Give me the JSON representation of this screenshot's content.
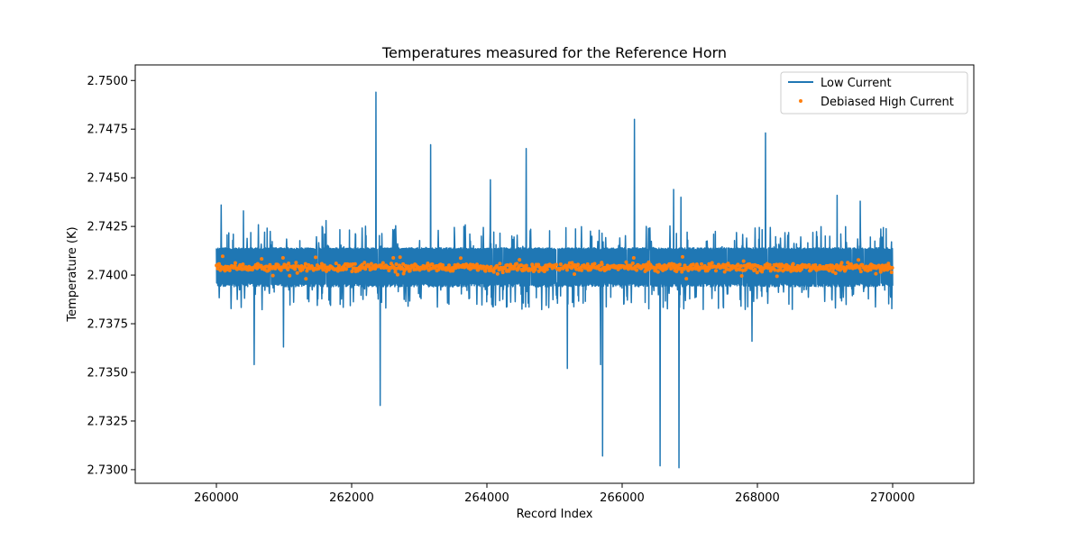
{
  "chart_data": {
    "type": "line",
    "title": "Temperatures measured for the Reference Horn",
    "xlabel": "Record Index",
    "ylabel": "Temperature (K)",
    "xlim": [
      258800,
      271200
    ],
    "ylim": [
      2.7293,
      2.7508
    ],
    "x_ticks": [
      260000,
      262000,
      264000,
      266000,
      268000,
      270000
    ],
    "x_tick_labels": [
      "260000",
      "262000",
      "264000",
      "266000",
      "268000",
      "270000"
    ],
    "y_ticks": [
      2.73,
      2.7325,
      2.735,
      2.7375,
      2.74,
      2.7425,
      2.745,
      2.7475,
      2.75
    ],
    "y_tick_labels": [
      "2.7300",
      "2.7325",
      "2.7350",
      "2.7375",
      "2.7400",
      "2.7425",
      "2.7450",
      "2.7475",
      "2.7500"
    ],
    "legend_position": "upper-right",
    "series": [
      {
        "name": "Low Current",
        "kind": "line",
        "color": "#1f77b4",
        "x_range": [
          260000,
          270000
        ],
        "band_low": 2.7394,
        "band_high": 2.7414,
        "spikes": [
          {
            "x": 260070,
            "y": 2.7436
          },
          {
            "x": 260250,
            "y": 2.7421
          },
          {
            "x": 260400,
            "y": 2.7433
          },
          {
            "x": 260560,
            "y": 2.7354
          },
          {
            "x": 260990,
            "y": 2.7363
          },
          {
            "x": 261620,
            "y": 2.7428
          },
          {
            "x": 262360,
            "y": 2.7494
          },
          {
            "x": 262420,
            "y": 2.7333
          },
          {
            "x": 263170,
            "y": 2.7467
          },
          {
            "x": 263660,
            "y": 2.7425
          },
          {
            "x": 264050,
            "y": 2.7449
          },
          {
            "x": 264580,
            "y": 2.7465
          },
          {
            "x": 265190,
            "y": 2.7352
          },
          {
            "x": 265680,
            "y": 2.7354
          },
          {
            "x": 265710,
            "y": 2.7307
          },
          {
            "x": 266180,
            "y": 2.748
          },
          {
            "x": 266560,
            "y": 2.7302
          },
          {
            "x": 266760,
            "y": 2.7444
          },
          {
            "x": 266840,
            "y": 2.7301
          },
          {
            "x": 266870,
            "y": 2.744
          },
          {
            "x": 267920,
            "y": 2.7366
          },
          {
            "x": 268120,
            "y": 2.7473
          },
          {
            "x": 269180,
            "y": 2.7441
          },
          {
            "x": 269520,
            "y": 2.7438
          }
        ]
      },
      {
        "name": "Debiased High Current",
        "kind": "scatter",
        "color": "#ff7f0e",
        "x_range": [
          260000,
          270000
        ],
        "center": 2.7404,
        "spread": 0.0002,
        "outlier_min": 2.7398,
        "outlier_max": 2.741
      }
    ]
  }
}
